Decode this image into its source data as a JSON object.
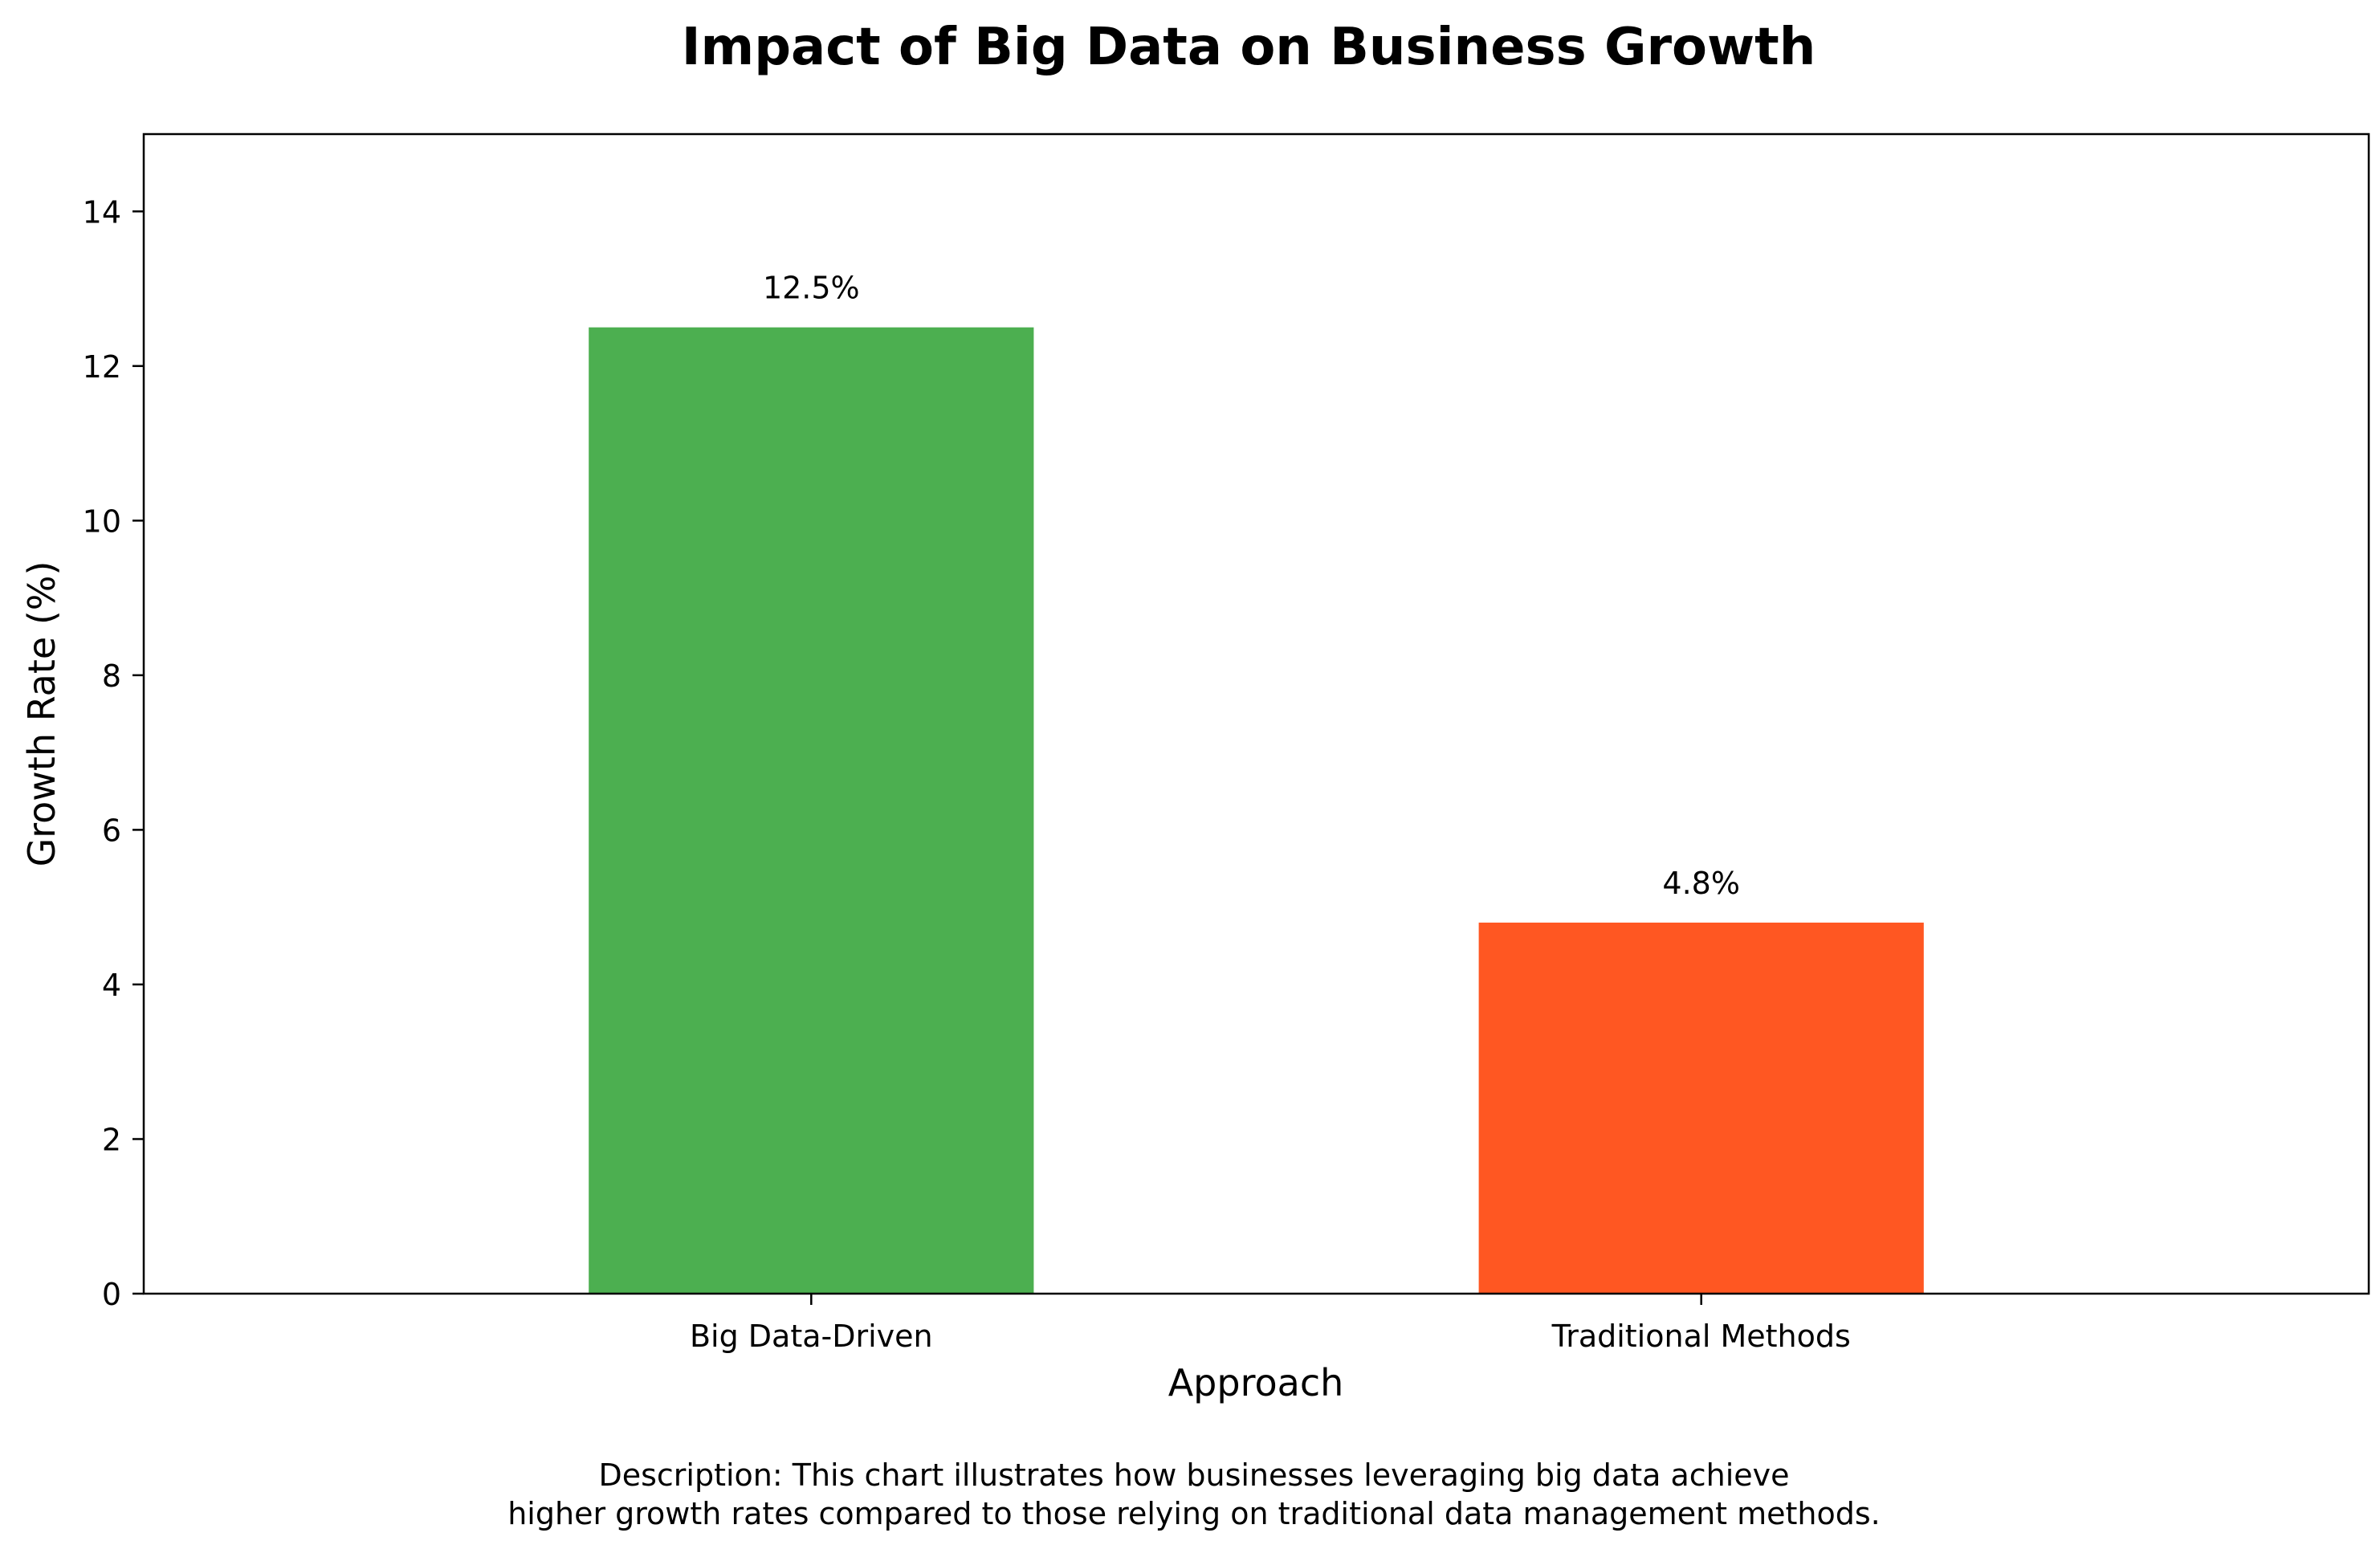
{
  "chart_data": {
    "type": "bar",
    "title": "Impact of Big Data on Business Growth",
    "xlabel": "Approach",
    "ylabel": "Growth Rate (%)",
    "categories": [
      "Big Data-Driven",
      "Traditional Methods"
    ],
    "values": [
      12.5,
      4.8
    ],
    "data_labels": [
      "12.5%",
      "4.8%"
    ],
    "colors": [
      "#4caf50",
      "#ff5722"
    ],
    "ylim": [
      0,
      15
    ],
    "yticks": [
      0,
      2,
      4,
      6,
      8,
      10,
      12,
      14
    ],
    "grid": false,
    "legend": "none"
  },
  "description": {
    "line1": "Description: This chart illustrates how businesses leveraging big data achieve",
    "line2": "higher growth rates compared to those relying on traditional data management methods."
  }
}
